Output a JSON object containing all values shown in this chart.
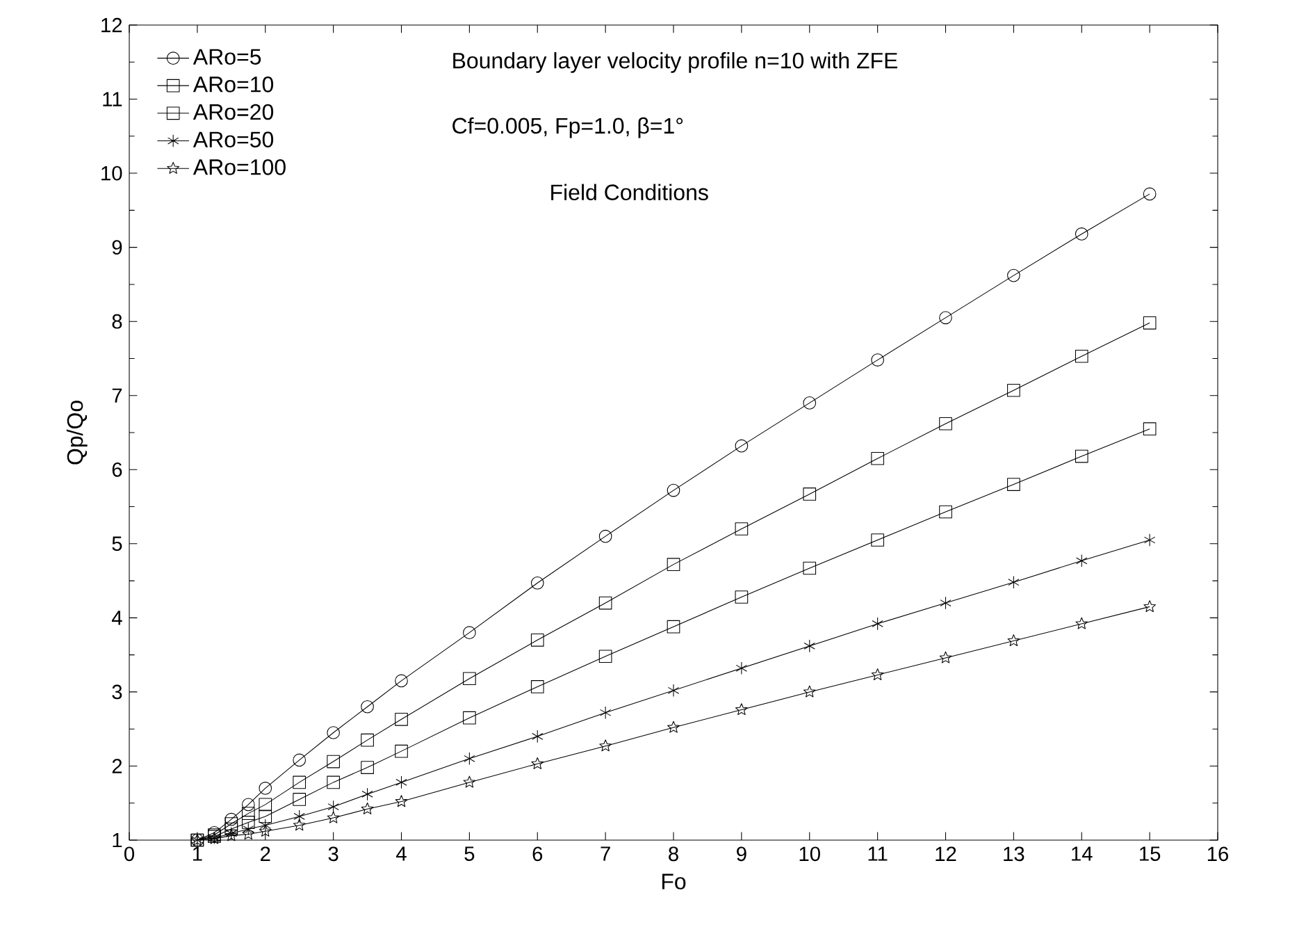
{
  "chart_data": {
    "type": "line",
    "xlabel": "Fo",
    "ylabel": "Qp/Qo",
    "annotations": [
      "Boundary layer velocity profile n=10 with ZFE",
      "Cf=0.005, Fp=1.0, β=1°",
      "Field Conditions"
    ],
    "xlim": [
      0,
      16
    ],
    "ylim": [
      1,
      12
    ],
    "xticks": [
      0,
      1,
      2,
      3,
      4,
      5,
      6,
      7,
      8,
      9,
      10,
      11,
      12,
      13,
      14,
      15,
      16
    ],
    "yticks": [
      1,
      2,
      3,
      4,
      5,
      6,
      7,
      8,
      9,
      10,
      11,
      12
    ],
    "grid": false,
    "legend": "top left",
    "line_style": "solid",
    "x": [
      1,
      1.25,
      1.5,
      1.75,
      2,
      2.5,
      3,
      3.5,
      4,
      5,
      6,
      7,
      8,
      9,
      10,
      11,
      12,
      13,
      14,
      15
    ],
    "series": [
      {
        "name": "ARo=5",
        "color": "#000000",
        "marker": "circle",
        "values": [
          1.0,
          1.1,
          1.28,
          1.48,
          1.7,
          2.08,
          2.45,
          2.8,
          3.15,
          3.8,
          4.47,
          5.1,
          5.72,
          6.32,
          6.9,
          7.48,
          8.05,
          8.62,
          9.18,
          9.72
        ]
      },
      {
        "name": "ARo=10",
        "color": "#000000",
        "marker": "square",
        "values": [
          1.0,
          1.07,
          1.22,
          1.36,
          1.48,
          1.78,
          2.06,
          2.35,
          2.63,
          3.18,
          3.7,
          4.2,
          4.72,
          5.2,
          5.67,
          6.15,
          6.62,
          7.07,
          7.53,
          7.98
        ]
      },
      {
        "name": "ARo=20",
        "color": "#000000",
        "marker": "square",
        "values": [
          1.0,
          1.05,
          1.15,
          1.24,
          1.32,
          1.55,
          1.78,
          1.98,
          2.2,
          2.65,
          3.07,
          3.48,
          3.88,
          4.28,
          4.67,
          5.05,
          5.43,
          5.8,
          6.18,
          6.55
        ]
      },
      {
        "name": "ARo=50",
        "color": "#000000",
        "marker": "star",
        "values": [
          1.0,
          1.03,
          1.09,
          1.15,
          1.2,
          1.32,
          1.45,
          1.62,
          1.78,
          2.1,
          2.4,
          2.72,
          3.02,
          3.32,
          3.62,
          3.92,
          4.2,
          4.48,
          4.77,
          5.05
        ]
      },
      {
        "name": "ARo=100",
        "color": "#000000",
        "marker": "cross",
        "values": [
          1.0,
          1.02,
          1.06,
          1.08,
          1.12,
          1.2,
          1.3,
          1.42,
          1.52,
          1.78,
          2.03,
          2.27,
          2.52,
          2.76,
          3.0,
          3.23,
          3.46,
          3.69,
          3.92,
          4.15
        ]
      }
    ]
  }
}
